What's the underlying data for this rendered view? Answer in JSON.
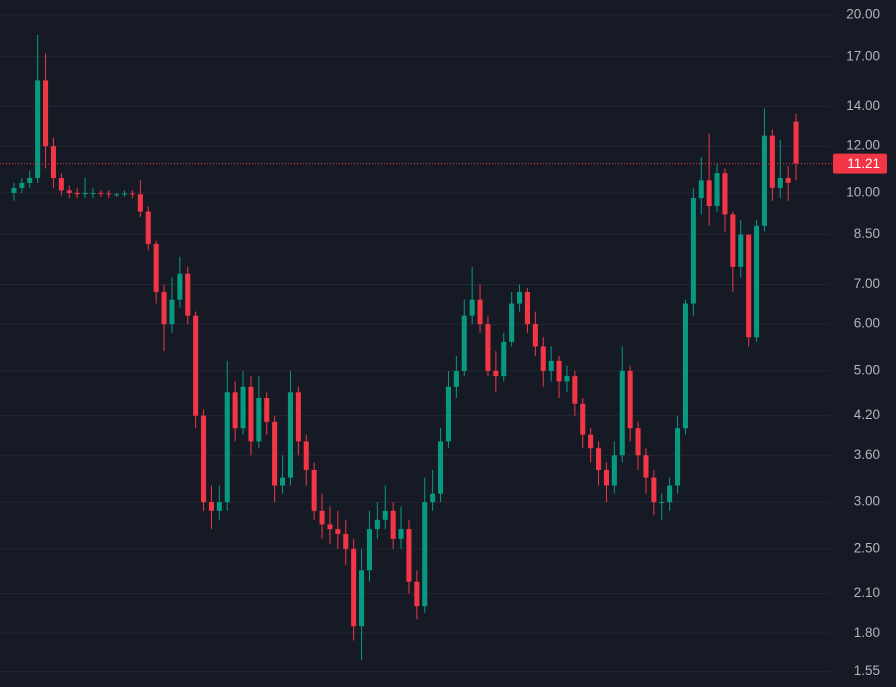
{
  "chart_data": {
    "type": "candlestick",
    "log_scale": true,
    "grid": true,
    "up_color": "#089981",
    "down_color": "#f23645",
    "ylim": [
      1.46,
      21.2
    ],
    "yticks": [
      {
        "value": 20,
        "label": "20.00"
      },
      {
        "value": 17,
        "label": "17.00"
      },
      {
        "value": 14,
        "label": "14.00"
      },
      {
        "value": 12,
        "label": "12.00"
      },
      {
        "value": 10,
        "label": "10.00"
      },
      {
        "value": 8.5,
        "label": "8.50"
      },
      {
        "value": 7,
        "label": "7.00"
      },
      {
        "value": 6,
        "label": "6.00"
      },
      {
        "value": 5,
        "label": "5.00"
      },
      {
        "value": 4.2,
        "label": "4.20"
      },
      {
        "value": 3.6,
        "label": "3.60"
      },
      {
        "value": 3,
        "label": "3.00"
      },
      {
        "value": 2.5,
        "label": "2.50"
      },
      {
        "value": 2.1,
        "label": "2.10"
      },
      {
        "value": 1.8,
        "label": "1.80"
      },
      {
        "value": 1.55,
        "label": "1.55"
      }
    ],
    "last_price": 11.21,
    "open": [
      10.0,
      10.2,
      10.4,
      10.6,
      15.5,
      12.0,
      10.6,
      10.1,
      10.0,
      9.95,
      10.0,
      10.0,
      9.98,
      9.95,
      9.95,
      9.98,
      9.95,
      9.3,
      8.2,
      6.8,
      6.0,
      6.6,
      7.3,
      6.2,
      4.2,
      3.0,
      2.9,
      3.0,
      4.6,
      4.0,
      4.7,
      3.8,
      4.5,
      4.1,
      3.2,
      3.3,
      4.6,
      3.8,
      3.4,
      2.9,
      2.75,
      2.7,
      2.65,
      2.5,
      1.85,
      2.3,
      2.7,
      2.8,
      2.9,
      2.6,
      2.7,
      2.2,
      2.0,
      3.0,
      3.1,
      3.8,
      4.7,
      5.0,
      6.2,
      6.6,
      6.0,
      5.0,
      4.9,
      5.6,
      6.5,
      6.8,
      6.0,
      5.5,
      5.0,
      5.2,
      4.8,
      4.9,
      4.4,
      3.9,
      3.7,
      3.4,
      3.2,
      3.6,
      5.0,
      4.0,
      3.6,
      3.3,
      3.0,
      3.0,
      3.2,
      4.0,
      6.5,
      9.8,
      10.5,
      9.5,
      10.8,
      9.2,
      7.5,
      8.5,
      5.7,
      8.8,
      12.5,
      10.2,
      10.6,
      13.2
    ],
    "high": [
      10.4,
      10.6,
      10.9,
      18.5,
      17.2,
      12.4,
      10.8,
      10.3,
      10.2,
      10.6,
      10.2,
      10.1,
      10.1,
      10.0,
      10.1,
      10.1,
      10.5,
      9.5,
      8.3,
      7.0,
      7.2,
      7.8,
      7.5,
      6.3,
      4.3,
      3.2,
      3.2,
      5.2,
      4.8,
      5.0,
      4.9,
      4.9,
      4.6,
      4.2,
      3.6,
      5.0,
      4.7,
      3.9,
      3.5,
      3.1,
      2.95,
      2.9,
      2.8,
      2.6,
      2.5,
      2.9,
      3.0,
      3.2,
      3.0,
      2.95,
      2.8,
      2.3,
      3.3,
      3.4,
      4.0,
      5.0,
      5.3,
      6.6,
      7.5,
      7.0,
      6.2,
      5.4,
      5.8,
      6.8,
      7.0,
      6.9,
      6.3,
      5.7,
      5.5,
      5.3,
      5.1,
      5.0,
      4.5,
      4.0,
      3.8,
      3.5,
      3.8,
      5.5,
      5.1,
      4.1,
      3.7,
      3.4,
      3.1,
      3.3,
      4.2,
      6.6,
      10.2,
      11.5,
      12.6,
      11.2,
      11.0,
      9.3,
      9.0,
      8.5,
      9.0,
      13.9,
      12.8,
      12.3,
      11.1,
      13.6
    ],
    "low": [
      9.7,
      10.0,
      10.2,
      10.4,
      11.0,
      10.2,
      9.9,
      9.8,
      9.8,
      9.8,
      9.8,
      9.85,
      9.8,
      9.85,
      9.85,
      9.8,
      9.1,
      8.0,
      6.5,
      5.4,
      5.8,
      6.4,
      6.0,
      4.0,
      2.9,
      2.7,
      2.8,
      2.9,
      3.8,
      3.9,
      3.6,
      3.7,
      3.9,
      3.0,
      3.1,
      3.2,
      3.6,
      3.2,
      2.8,
      2.6,
      2.55,
      2.5,
      2.35,
      1.75,
      1.62,
      2.2,
      2.6,
      2.7,
      2.5,
      2.5,
      2.1,
      1.9,
      1.95,
      2.9,
      3.0,
      3.7,
      4.5,
      4.9,
      6.0,
      5.8,
      4.9,
      4.6,
      4.8,
      5.5,
      6.3,
      5.8,
      5.3,
      4.7,
      4.8,
      4.5,
      4.6,
      4.2,
      3.7,
      3.5,
      3.2,
      3.0,
      3.1,
      3.5,
      3.8,
      3.4,
      3.1,
      2.85,
      2.8,
      2.9,
      3.1,
      3.9,
      6.2,
      9.2,
      8.8,
      9.3,
      8.6,
      6.8,
      7.2,
      5.5,
      5.6,
      8.6,
      9.7,
      9.8,
      9.7,
      10.5
    ],
    "close": [
      10.2,
      10.4,
      10.6,
      15.5,
      12.0,
      10.6,
      10.1,
      10.0,
      9.95,
      10.0,
      10.0,
      9.98,
      9.95,
      9.95,
      9.98,
      9.95,
      9.3,
      8.2,
      6.8,
      6.0,
      6.6,
      7.3,
      6.2,
      4.2,
      3.0,
      2.9,
      3.0,
      4.6,
      4.0,
      4.7,
      3.8,
      4.5,
      4.1,
      3.2,
      3.3,
      4.6,
      3.8,
      3.4,
      2.9,
      2.75,
      2.7,
      2.65,
      2.5,
      1.85,
      2.3,
      2.7,
      2.8,
      2.9,
      2.6,
      2.7,
      2.2,
      2.0,
      3.0,
      3.1,
      3.8,
      4.7,
      5.0,
      6.2,
      6.6,
      6.0,
      5.0,
      4.9,
      5.6,
      6.5,
      6.8,
      6.0,
      5.5,
      5.0,
      5.2,
      4.8,
      4.9,
      4.4,
      3.9,
      3.7,
      3.4,
      3.2,
      3.6,
      5.0,
      4.0,
      3.6,
      3.3,
      3.0,
      3.0,
      3.2,
      4.0,
      6.5,
      9.8,
      10.5,
      9.5,
      10.8,
      9.2,
      7.5,
      8.5,
      5.7,
      8.8,
      12.5,
      10.2,
      10.6,
      10.4,
      11.21
    ]
  }
}
